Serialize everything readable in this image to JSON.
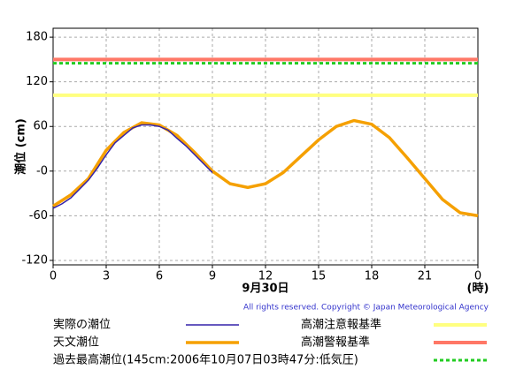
{
  "chart_data": {
    "type": "line",
    "y_label": "潮位 (cm)",
    "x_label": "9月30日",
    "x_unit": "(時)",
    "copyright": "All rights reserved. Copyright © Japan Meteorological Agency",
    "xlim": [
      0,
      24
    ],
    "xticks": [
      0,
      3,
      6,
      9,
      12,
      15,
      18,
      21,
      {
        "value": 24,
        "label": "0"
      }
    ],
    "ylim": [
      -126,
      192
    ],
    "yticks": [
      180,
      120,
      60,
      {
        "value": 0,
        "label": "-0"
      },
      -60,
      -120
    ],
    "grid": true,
    "series": [
      {
        "name": "実際の潮位",
        "color": "#3322aa",
        "x": [
          0,
          0.5,
          1,
          1.5,
          2,
          2.5,
          3,
          3.5,
          4,
          4.5,
          5,
          5.5,
          6,
          6.5,
          7,
          7.5,
          8,
          8.5,
          9
        ],
        "values": [
          -50,
          -44,
          -36,
          -24,
          -12,
          4,
          22,
          38,
          48,
          58,
          62,
          62,
          60,
          55,
          44,
          34,
          22,
          10,
          -2
        ]
      },
      {
        "name": "天文潮位",
        "color": "#f5a000",
        "x": [
          0,
          1,
          2,
          3,
          4,
          5,
          6,
          7,
          8,
          9,
          10,
          11,
          12,
          13,
          14,
          15,
          16,
          17,
          18,
          19,
          20,
          21,
          22,
          23,
          24
        ],
        "values": [
          -47,
          -32,
          -10,
          28,
          52,
          65,
          62,
          48,
          25,
          0,
          -17,
          -22,
          -17,
          -2,
          20,
          42,
          60,
          68,
          63,
          45,
          18,
          -10,
          -38,
          -56,
          -60
        ]
      }
    ],
    "reference_lines": [
      {
        "name": "高潮注意報基準",
        "color": "#ffff80",
        "value": 102,
        "dashed": false
      },
      {
        "name": "高潮警報基準",
        "color": "#ff7766",
        "value": 150,
        "dashed": false
      },
      {
        "name": "過去最高潮位(145cm:2006年10月07日03時47分:低気圧)",
        "color": "#22cc22",
        "value": 145,
        "dashed": true
      }
    ]
  }
}
